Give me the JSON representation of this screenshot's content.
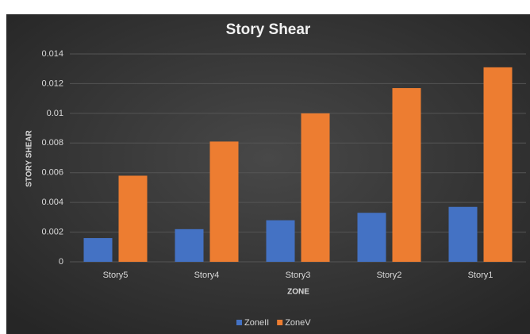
{
  "chart_data": {
    "type": "bar",
    "title": "Story Shear",
    "x_label": "ZONE",
    "y_label": "STORY SHEAR",
    "categories": [
      "Story5",
      "Story4",
      "Story3",
      "Story2",
      "Story1"
    ],
    "series": [
      {
        "name": "ZoneII",
        "color": "#4472c4",
        "values": [
          0.0016,
          0.0022,
          0.0028,
          0.0033,
          0.0037
        ]
      },
      {
        "name": "ZoneV",
        "color": "#ed7d31",
        "values": [
          0.0058,
          0.0081,
          0.01,
          0.0117,
          0.0131
        ]
      }
    ],
    "ylim": [
      0,
      0.014
    ],
    "yticks": [
      0,
      0.002,
      0.004,
      0.006,
      0.008,
      0.01,
      0.012,
      0.014
    ],
    "grid": true,
    "legend": "bottom"
  }
}
